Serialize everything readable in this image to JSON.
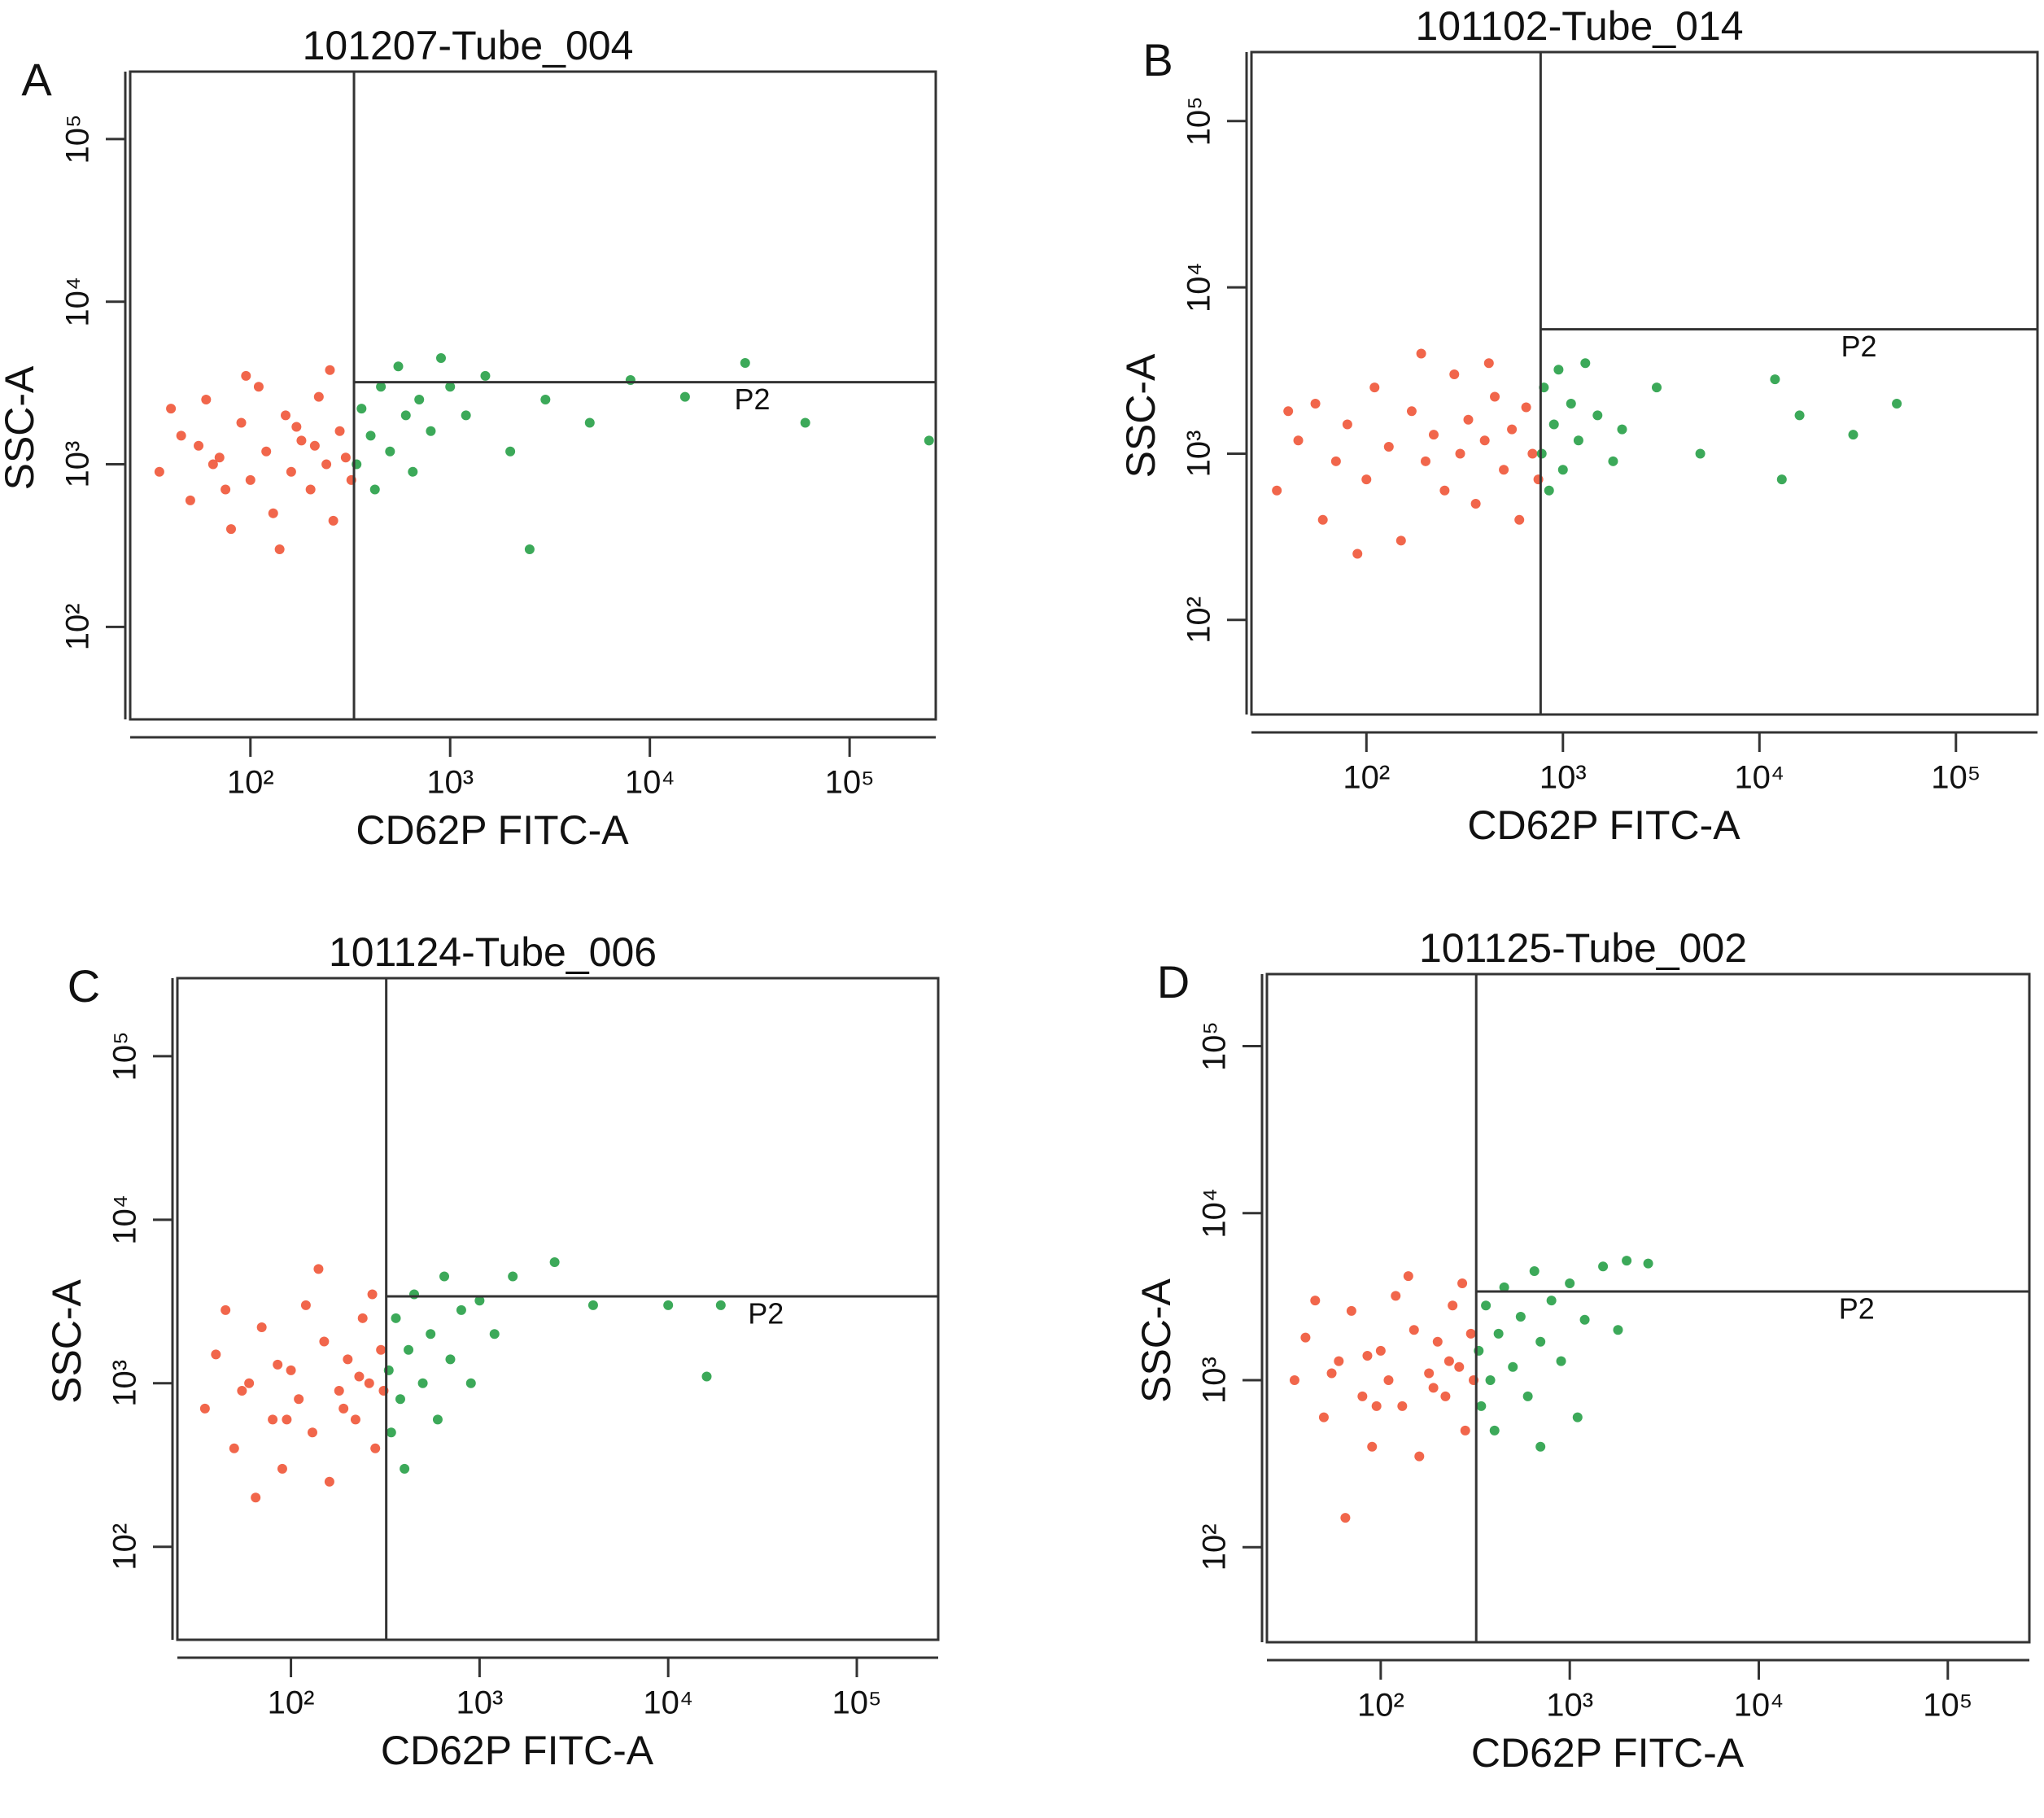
{
  "chart_data": [
    {
      "type": "scatter",
      "panel_label": "A",
      "title": "101207-Tube_004",
      "x_label": "CD62P FITC-A",
      "y_label": "SSC-A",
      "annotation": "P2",
      "xscale": "log",
      "yscale": "log",
      "xlim": [
        25,
        270000
      ],
      "ylim": [
        27,
        260000
      ],
      "xticks": [
        {
          "value": 100,
          "label": "10²"
        },
        {
          "value": 1000,
          "label": "10³"
        },
        {
          "value": 10000,
          "label": "10⁴"
        },
        {
          "value": 100000,
          "label": "10⁵"
        }
      ],
      "yticks": [
        {
          "value": 100,
          "label": "10²"
        },
        {
          "value": 1000,
          "label": "10³"
        },
        {
          "value": 10000,
          "label": "10⁴"
        },
        {
          "value": 100000,
          "label": "10⁵"
        }
      ],
      "gate": {
        "x": 330,
        "y": 3200
      },
      "series": [
        {
          "color": "#ef4b2b",
          "x": [
            35,
            45,
            50,
            60,
            70,
            80,
            90,
            100,
            110,
            120,
            130,
            150,
            160,
            180,
            200,
            220,
            240,
            260,
            280,
            300,
            40,
            55,
            75,
            95,
            140,
            170,
            210,
            250,
            320,
            65
          ],
          "y": [
            900,
            1500,
            600,
            2500,
            1100,
            400,
            1800,
            800,
            3000,
            1200,
            500,
            2000,
            900,
            1400,
            700,
            2600,
            1000,
            450,
            1600,
            1100,
            2200,
            1300,
            700,
            3500,
            300,
            1700,
            1300,
            3800,
            800,
            1000
          ]
        },
        {
          "color": "#1a9a3c",
          "x": [
            340,
            360,
            400,
            420,
            450,
            500,
            550,
            600,
            650,
            700,
            800,
            900,
            1000,
            1200,
            1500,
            2000,
            2500,
            3000,
            5000,
            8000,
            15000,
            30000,
            60000,
            250000
          ],
          "y": [
            1000,
            2200,
            1500,
            700,
            3000,
            1200,
            4000,
            2000,
            900,
            2500,
            1600,
            4500,
            3000,
            2000,
            3500,
            1200,
            300,
            2500,
            1800,
            3300,
            2600,
            4200,
            1800,
            1400
          ]
        }
      ]
    },
    {
      "type": "scatter",
      "panel_label": "B",
      "title": "101102-Tube_014",
      "x_label": "CD62P FITC-A",
      "y_label": "SSC-A",
      "annotation": "P2",
      "xscale": "log",
      "yscale": "log",
      "xlim": [
        26,
        260000
      ],
      "ylim": [
        27,
        260000
      ],
      "xticks": [
        {
          "value": 100,
          "label": "10²"
        },
        {
          "value": 1000,
          "label": "10³"
        },
        {
          "value": 10000,
          "label": "10⁴"
        },
        {
          "value": 100000,
          "label": "10⁵"
        }
      ],
      "yticks": [
        {
          "value": 100,
          "label": "10²"
        },
        {
          "value": 1000,
          "label": "10³"
        },
        {
          "value": 10000,
          "label": "10⁴"
        },
        {
          "value": 100000,
          "label": "10⁵"
        }
      ],
      "gate": {
        "x": 770,
        "y": 5600
      },
      "series": [
        {
          "color": "#ef4b2b",
          "x": [
            35,
            45,
            55,
            60,
            70,
            80,
            100,
            110,
            130,
            150,
            170,
            200,
            220,
            250,
            280,
            300,
            330,
            360,
            400,
            450,
            500,
            550,
            600,
            650,
            700,
            750,
            40,
            90,
            190,
            420
          ],
          "y": [
            600,
            1200,
            2000,
            400,
            900,
            1500,
            700,
            2500,
            1100,
            300,
            1800,
            900,
            1300,
            600,
            3000,
            1000,
            1600,
            500,
            1200,
            2200,
            800,
            1400,
            400,
            1900,
            1000,
            700,
            1800,
            250,
            4000,
            3500
          ]
        },
        {
          "color": "#1a9a3c",
          "x": [
            780,
            800,
            850,
            900,
            950,
            1000,
            1100,
            1200,
            1300,
            1500,
            1800,
            2000,
            3000,
            5000,
            12000,
            13000,
            16000,
            30000,
            50000
          ],
          "y": [
            1000,
            2500,
            600,
            1500,
            3200,
            800,
            2000,
            1200,
            3500,
            1700,
            900,
            1400,
            2500,
            1000,
            2800,
            700,
            1700,
            1300,
            2000
          ]
        }
      ]
    },
    {
      "type": "scatter",
      "panel_label": "C",
      "title": "101124-Tube_006",
      "x_label": "CD62P FITC-A",
      "y_label": "SSC-A",
      "annotation": "P2",
      "xscale": "log",
      "yscale": "log",
      "xlim": [
        25,
        270000
      ],
      "ylim": [
        27,
        300000
      ],
      "xticks": [
        {
          "value": 100,
          "label": "10²"
        },
        {
          "value": 1000,
          "label": "10³"
        },
        {
          "value": 10000,
          "label": "10⁴"
        },
        {
          "value": 100000,
          "label": "10⁵"
        }
      ],
      "yticks": [
        {
          "value": 100,
          "label": "10²"
        },
        {
          "value": 1000,
          "label": "10³"
        },
        {
          "value": 10000,
          "label": "10⁴"
        },
        {
          "value": 100000,
          "label": "10⁵"
        }
      ],
      "gate": {
        "x": 320,
        "y": 3400
      },
      "series": [
        {
          "color": "#ef4b2b",
          "x": [
            35,
            40,
            50,
            60,
            70,
            80,
            90,
            100,
            110,
            120,
            130,
            150,
            160,
            180,
            200,
            220,
            240,
            260,
            280,
            300,
            45,
            65,
            85,
            140,
            190,
            230,
            270,
            310,
            55,
            95
          ],
          "y": [
            700,
            1500,
            400,
            1000,
            2200,
            600,
            300,
            1200,
            800,
            3000,
            500,
            1800,
            250,
            900,
            1400,
            600,
            2500,
            1000,
            400,
            1600,
            2800,
            200,
            1300,
            5000,
            700,
            1100,
            3500,
            900,
            900,
            600
          ]
        },
        {
          "color": "#1a9a3c",
          "x": [
            330,
            340,
            360,
            380,
            400,
            420,
            450,
            500,
            550,
            600,
            650,
            700,
            800,
            900,
            1000,
            1200,
            1500,
            2500,
            4000,
            10000,
            16000,
            19000
          ],
          "y": [
            1200,
            500,
            2500,
            800,
            300,
            1600,
            3500,
            1000,
            2000,
            600,
            4500,
            1400,
            2800,
            1000,
            3200,
            2000,
            4500,
            5500,
            3000,
            3000,
            1100,
            3000
          ]
        }
      ]
    },
    {
      "type": "scatter",
      "panel_label": "D",
      "title": "101125-Tube_002",
      "x_label": "CD62P FITC-A",
      "y_label": "SSC-A",
      "annotation": "P2",
      "xscale": "log",
      "yscale": "log",
      "xlim": [
        25,
        270000
      ],
      "ylim": [
        27,
        270000
      ],
      "xticks": [
        {
          "value": 100,
          "label": "10²"
        },
        {
          "value": 1000,
          "label": "10³"
        },
        {
          "value": 10000,
          "label": "10⁴"
        },
        {
          "value": 100000,
          "label": "10⁵"
        }
      ],
      "yticks": [
        {
          "value": 100,
          "label": "10²"
        },
        {
          "value": 1000,
          "label": "10³"
        },
        {
          "value": 10000,
          "label": "10⁴"
        },
        {
          "value": 100000,
          "label": "10⁵"
        }
      ],
      "gate": {
        "x": 320,
        "y": 3400
      },
      "series": [
        {
          "color": "#ef4b2b",
          "x": [
            35,
            40,
            50,
            60,
            70,
            80,
            90,
            100,
            110,
            120,
            130,
            150,
            160,
            180,
            200,
            220,
            240,
            260,
            280,
            300,
            45,
            65,
            85,
            140,
            190,
            230,
            270,
            310,
            55,
            95
          ],
          "y": [
            1000,
            1800,
            600,
            1300,
            2600,
            800,
            400,
            1500,
            1000,
            3200,
            700,
            2000,
            350,
            1100,
            1700,
            800,
            2800,
            1200,
            500,
            1900,
            3000,
            150,
            1400,
            4200,
            900,
            1300,
            3800,
            1000,
            1100,
            700
          ]
        },
        {
          "color": "#1a9a3c",
          "x": [
            330,
            340,
            360,
            380,
            400,
            420,
            450,
            500,
            550,
            600,
            650,
            700,
            800,
            900,
            1000,
            1200,
            1500,
            1800,
            2000,
            2600,
            1100,
            700
          ],
          "y": [
            1500,
            700,
            2800,
            1000,
            500,
            1900,
            3600,
            1200,
            2400,
            800,
            4500,
            1700,
            3000,
            1300,
            3800,
            2300,
            4800,
            2000,
            5200,
            5000,
            600,
            400
          ]
        }
      ]
    }
  ]
}
